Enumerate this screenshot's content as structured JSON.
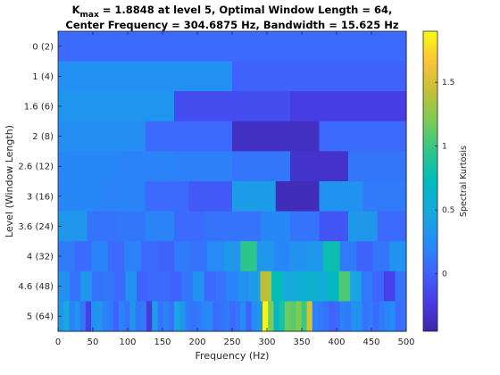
{
  "chart_data": {
    "type": "heatmap",
    "title_lines": [
      {
        "base": "K",
        "subscript": "max",
        "rest": " = 1.8848 at level 5, Optimal Window Length = 64,"
      },
      {
        "text": "Center Frequency = 304.6875 Hz, Bandwidth = 15.625 Hz"
      }
    ],
    "xlabel": "Frequency (Hz)",
    "ylabel": "Level (Window Length)",
    "colorbar_label": "Spectral Kurtosis",
    "xlim": [
      0,
      500
    ],
    "x_ticks": [
      0,
      50,
      100,
      150,
      200,
      250,
      300,
      350,
      400,
      450,
      500
    ],
    "y_labels": [
      "0  (2)",
      "1  (4)",
      "1.6  (6)",
      "2  (8)",
      "2.6 (12)",
      "3 (16)",
      "3.6 (24)",
      "4 (32)",
      "4.6 (48)",
      "5 (64)"
    ],
    "clim": [
      -0.45,
      1.9
    ],
    "colorbar_ticks": [
      0,
      0.5,
      1,
      1.5
    ],
    "colorbar_tick_labels": [
      "0",
      "0.5",
      "1",
      "1.5"
    ],
    "rows": [
      {
        "values": [
          0.05
        ]
      },
      {
        "values": [
          0.28,
          0.0
        ]
      },
      {
        "values": [
          0.32,
          -0.12,
          -0.22
        ]
      },
      {
        "values": [
          0.26,
          0.05,
          -0.35,
          0.05
        ]
      },
      {
        "values": [
          0.22,
          0.2,
          0.18,
          0.12,
          -0.32,
          0.12
        ]
      },
      {
        "values": [
          0.22,
          0.2,
          0.05,
          -0.05,
          0.38,
          -0.38,
          0.3,
          0.15
        ]
      },
      {
        "values": [
          0.35,
          0.1,
          0.12,
          0.2,
          0.05,
          0.1,
          0.1,
          0.22,
          0.1,
          -0.08,
          0.35,
          0.05
        ]
      },
      {
        "values": [
          0.15,
          0.05,
          0.2,
          0.05,
          0.2,
          0.05,
          0.0,
          0.15,
          0.1,
          0.25,
          0.35,
          0.95,
          0.35,
          0.22,
          0.3,
          0.35,
          0.78,
          0.15,
          0.0,
          0.12,
          0.3
        ]
      },
      {
        "values": [
          0.3,
          0.1,
          0.35,
          0.1,
          0.12,
          0.05,
          0.3,
          0.0,
          0.05,
          0.05,
          0.0,
          0.12,
          0.3,
          0.05,
          0.1,
          0.2,
          0.3,
          0.4,
          1.4,
          0.75,
          0.5,
          0.55,
          0.6,
          0.55,
          0.7,
          1.05,
          0.45,
          0.15,
          0.02,
          -0.2,
          0.1
        ]
      },
      {
        "values": [
          0.35,
          0.5,
          0.2,
          0.3,
          0.12,
          -0.2,
          0.3,
          0.35,
          0.2,
          0.15,
          0.0,
          0.2,
          0.1,
          0.35,
          0.12,
          0.15,
          -0.25,
          0.4,
          0.1,
          0.2,
          0.1,
          0.45,
          0.35,
          0.15,
          0.1,
          0.15,
          0.2,
          0.25,
          0.05,
          0.1,
          0.15,
          0.05,
          0.12,
          0.25,
          0.0,
          0.25,
          0.35,
          1.88,
          1.2,
          0.65,
          0.85,
          1.15,
          1.1,
          1.2,
          1.0,
          1.5,
          0.2,
          0.15,
          0.1,
          0.0,
          0.05,
          0.2,
          0.15,
          0.3,
          0.3,
          0.1,
          0.15,
          0.05,
          0.15,
          0.2,
          0.25,
          0.05,
          0.1
        ]
      }
    ]
  }
}
